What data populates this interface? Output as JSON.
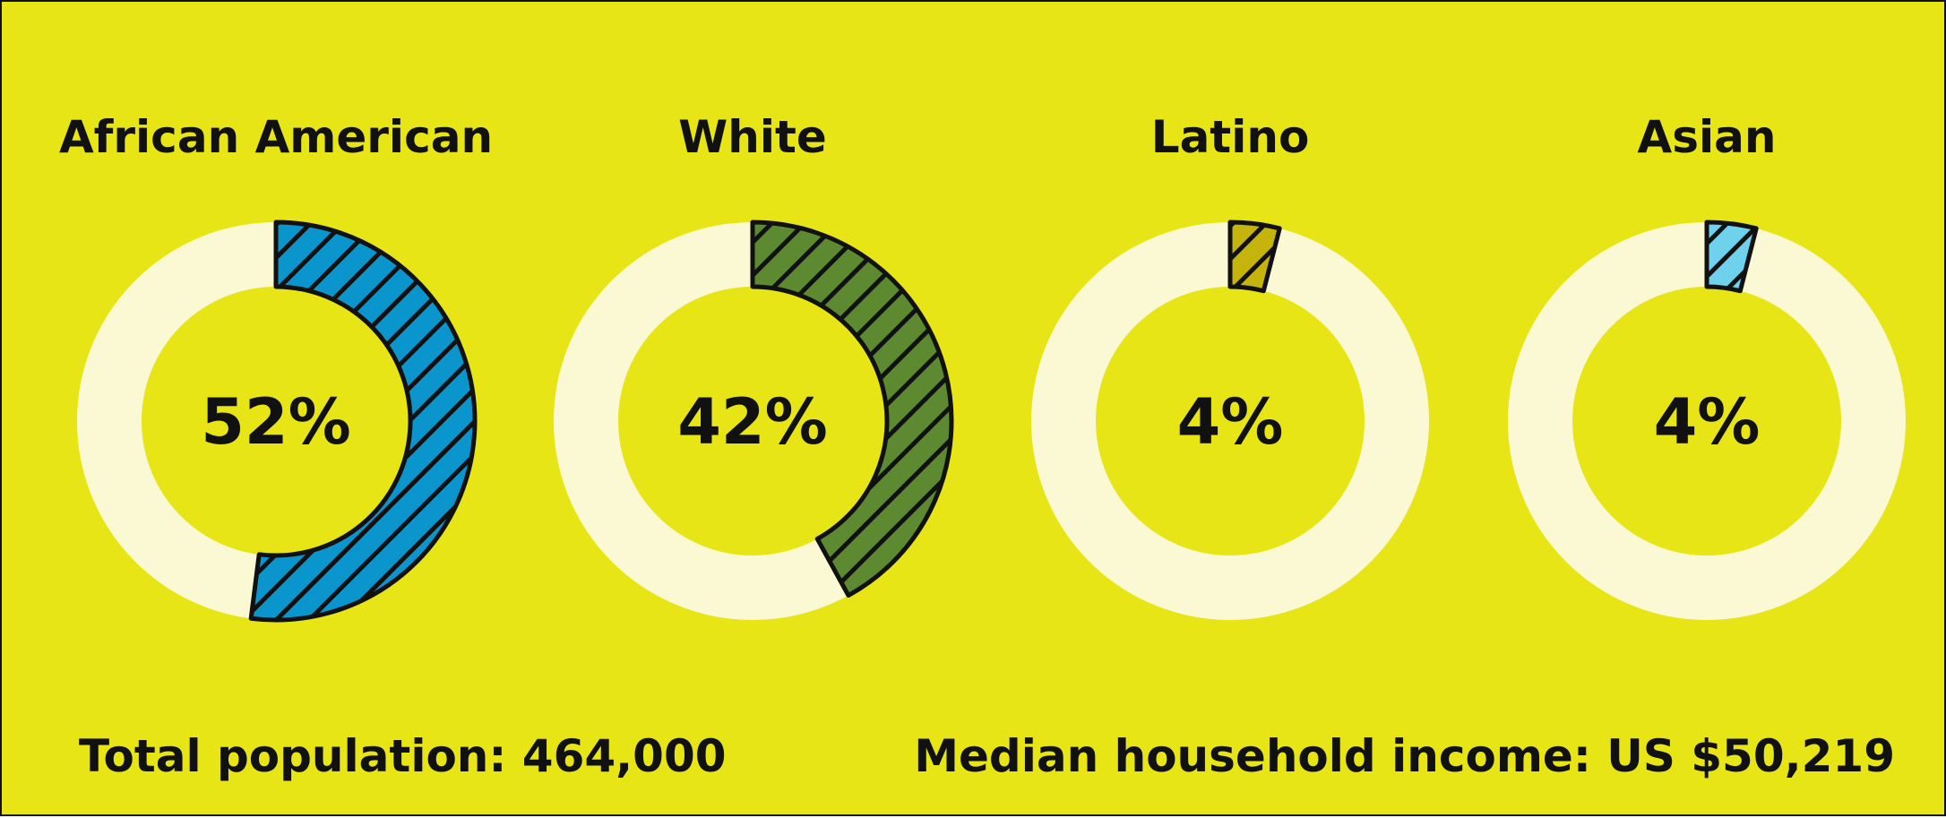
{
  "chart_data": [
    {
      "type": "pie",
      "title": "African American",
      "value": 52,
      "label": "52%",
      "color": "#0a96cc",
      "track_color": "#fbf9d3"
    },
    {
      "type": "pie",
      "title": "White",
      "value": 42,
      "label": "42%",
      "color": "#5d8a30",
      "track_color": "#fbf9d3"
    },
    {
      "type": "pie",
      "title": "Latino",
      "value": 4,
      "label": "4%",
      "color": "#c4b40c",
      "track_color": "#fbf9d3"
    },
    {
      "type": "pie",
      "title": "Asian",
      "value": 4,
      "label": "4%",
      "color": "#6fd2ec",
      "track_color": "#fbf9d3"
    }
  ],
  "footer": {
    "population": "Total population: 464,000",
    "income": "Median household income: US $50,219"
  },
  "colors": {
    "background": "#e8e516",
    "text": "#111111"
  }
}
